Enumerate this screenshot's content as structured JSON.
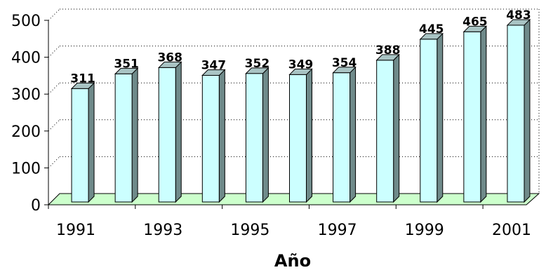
{
  "chart_data": {
    "type": "bar",
    "categories": [
      "1991",
      "1992",
      "1993",
      "1994",
      "1995",
      "1996",
      "1997",
      "1998",
      "1999",
      "2000",
      "2001"
    ],
    "values": [
      311,
      351,
      368,
      347,
      352,
      349,
      354,
      388,
      445,
      465,
      483
    ],
    "x_tick_labels": [
      "1991",
      "1993",
      "1995",
      "1997",
      "1999",
      "2001"
    ],
    "y_ticks": [
      0,
      100,
      200,
      300,
      400,
      500
    ],
    "xlabel": "Año",
    "ylabel": "",
    "ylim": [
      0,
      500
    ],
    "grid": true,
    "legend": "none",
    "colors": {
      "bar_front": "#ccffff",
      "bar_side": "#6f8a8a",
      "bar_top": "#a9c4c4",
      "floor": "#ccffcc"
    }
  }
}
